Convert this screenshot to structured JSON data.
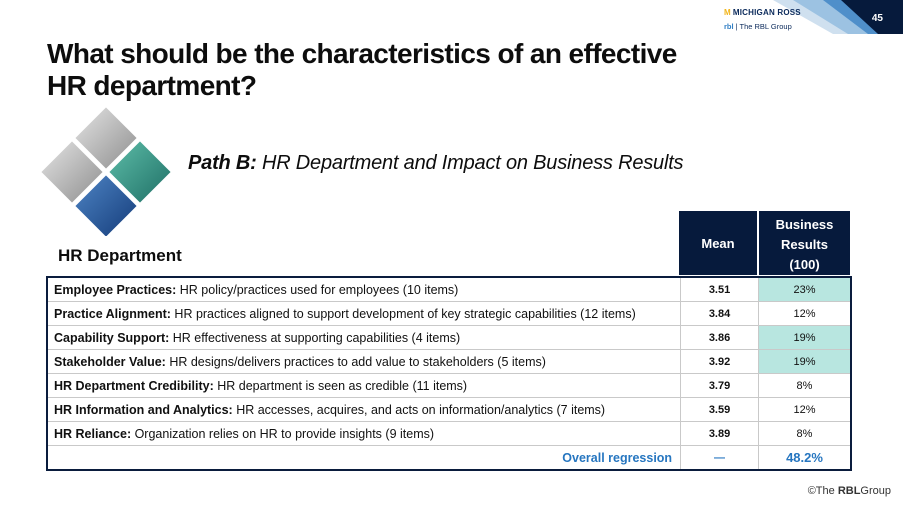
{
  "header": {
    "slide_number": "45",
    "logo_michigan": "MICHIGAN ROSS",
    "logo_michigan_mark": "M",
    "logo_rbl_mark": "rbl",
    "logo_rbl_text": "| The RBL Group"
  },
  "title": "What should be the characteristics of an effective HR department?",
  "subtitle": {
    "bold": "Path B:",
    "text": " HR Department and Impact on Business Results"
  },
  "section_label": "HR Department",
  "columns": {
    "mean": "Mean",
    "business_results_line1": "Business",
    "business_results_line2": "Results",
    "business_results_line3": "(100)"
  },
  "rows": [
    {
      "label": "Employee Practices:",
      "desc": " HR policy/practices used for employees (10 items)",
      "mean": "3.51",
      "result": "23%"
    },
    {
      "label": "Practice Alignment:",
      "desc": " HR practices aligned to support development of  key strategic capabilities  (12 items)",
      "mean": "3.84",
      "result": "12%"
    },
    {
      "label": "Capability Support:",
      "desc": " HR effectiveness at supporting capabilities (4 items)",
      "mean": "3.86",
      "result": "19%"
    },
    {
      "label": "Stakeholder Value:",
      "desc": " HR designs/delivers practices to add value to stakeholders (5 items)",
      "mean": "3.92",
      "result": "19%"
    },
    {
      "label": "HR Department Credibility:",
      "desc": " HR department is seen as credible (11 items)",
      "mean": "3.79",
      "result": "8%"
    },
    {
      "label": "HR Information and Analytics:",
      "desc": " HR accesses, acquires, and acts on information/analytics (7 items)",
      "mean": "3.59",
      "result": "12%"
    },
    {
      "label": "HR Reliance:",
      "desc": " Organization relies on HR to provide insights  (9 items)",
      "mean": "3.89",
      "result": "8%"
    }
  ],
  "overall": {
    "label": "Overall regression",
    "mean": "—",
    "result": "48.2%"
  },
  "footer": {
    "copyright_symbol": "©",
    "the": "The ",
    "brand": "RBL",
    "group": "Group"
  },
  "colors": {
    "navy": "#061a3c",
    "highlight": "#b8e6e0",
    "accent_blue": "#2676c0"
  }
}
